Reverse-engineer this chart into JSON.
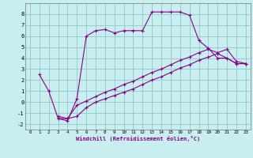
{
  "xlabel": "Windchill (Refroidissement éolien,°C)",
  "bg_color": "#c8eef0",
  "grid_color": "#99cccc",
  "line_color": "#880088",
  "xlim": [
    -0.5,
    23.5
  ],
  "ylim": [
    -2.5,
    9.0
  ],
  "xticks": [
    0,
    1,
    2,
    3,
    4,
    5,
    6,
    7,
    8,
    9,
    10,
    11,
    12,
    13,
    14,
    15,
    16,
    17,
    18,
    19,
    20,
    21,
    22,
    23
  ],
  "yticks": [
    -2,
    -1,
    0,
    1,
    2,
    3,
    4,
    5,
    6,
    7,
    8
  ],
  "curve1_x": [
    1,
    2,
    3,
    4,
    5,
    6,
    7,
    8,
    9,
    10,
    11,
    12,
    13,
    14,
    15,
    16,
    17,
    18,
    19,
    20,
    21,
    22,
    23
  ],
  "curve1_y": [
    2.5,
    1.0,
    -1.5,
    -1.7,
    0.3,
    6.0,
    6.5,
    6.6,
    6.3,
    6.5,
    6.5,
    6.5,
    8.2,
    8.2,
    8.2,
    8.2,
    7.9,
    5.6,
    4.9,
    4.0,
    4.0,
    3.5,
    3.5
  ],
  "curve2_x": [
    3,
    4,
    5,
    6,
    7,
    8,
    9,
    10,
    11,
    12,
    13,
    14,
    15,
    16,
    17,
    18,
    19,
    20,
    21,
    22,
    23
  ],
  "curve2_y": [
    -1.3,
    -1.5,
    -1.3,
    -0.5,
    0.0,
    0.3,
    0.6,
    0.9,
    1.2,
    1.6,
    2.0,
    2.3,
    2.7,
    3.1,
    3.4,
    3.8,
    4.1,
    4.4,
    4.0,
    3.5,
    3.5
  ],
  "curve3_x": [
    3,
    4,
    5,
    6,
    7,
    8,
    9,
    10,
    11,
    12,
    13,
    14,
    15,
    16,
    17,
    18,
    19,
    20,
    21,
    22,
    23
  ],
  "curve3_y": [
    -1.5,
    -1.5,
    -0.3,
    0.1,
    0.5,
    0.9,
    1.2,
    1.6,
    1.9,
    2.3,
    2.7,
    3.0,
    3.4,
    3.8,
    4.1,
    4.5,
    4.8,
    4.5,
    4.8,
    3.7,
    3.5
  ]
}
